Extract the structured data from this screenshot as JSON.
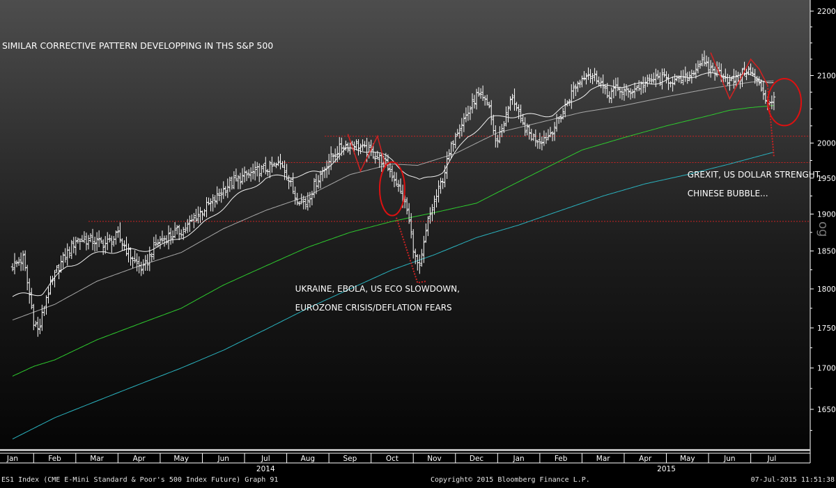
{
  "chart_data": {
    "type": "line",
    "title": "SIMILAR CORRECTIVE PATTERN DEVELOPPING IN THS S&P 500",
    "y_scale": "log",
    "ylim": [
      1600,
      2230
    ],
    "yticks": [
      1650,
      1700,
      1750,
      1800,
      1850,
      1900,
      1950,
      2000,
      2100,
      2200
    ],
    "y_axis_side": "right",
    "y_axis_label_fragment": "og",
    "x_month_labels": [
      "Jan",
      "Feb",
      "Mar",
      "Apr",
      "May",
      "Jun",
      "Jul",
      "Aug",
      "Sep",
      "Oct",
      "Nov",
      "Dec",
      "Jan",
      "Feb",
      "Mar",
      "Apr",
      "May",
      "Jun",
      "Jul"
    ],
    "x_year_labels": [
      {
        "label": "2014",
        "month_index": 6
      },
      {
        "label": "2015",
        "month_index": 15.5
      }
    ],
    "x_range_months": [
      0,
      18.9
    ],
    "price_bars": {
      "name": "ES1 Index",
      "color": "#ffffff",
      "knots": [
        [
          0,
          1830
        ],
        [
          0.25,
          1840
        ],
        [
          0.5,
          1760
        ],
        [
          0.62,
          1745
        ],
        [
          0.8,
          1790
        ],
        [
          1.1,
          1830
        ],
        [
          1.5,
          1865
        ],
        [
          1.8,
          1865
        ],
        [
          2.2,
          1860
        ],
        [
          2.5,
          1870
        ],
        [
          2.9,
          1835
        ],
        [
          3.1,
          1825
        ],
        [
          3.4,
          1860
        ],
        [
          3.7,
          1870
        ],
        [
          4.1,
          1880
        ],
        [
          4.4,
          1900
        ],
        [
          4.8,
          1920
        ],
        [
          5.1,
          1940
        ],
        [
          5.4,
          1950
        ],
        [
          5.8,
          1960
        ],
        [
          6.1,
          1965
        ],
        [
          6.4,
          1970
        ],
        [
          6.7,
          1925
        ],
        [
          6.95,
          1915
        ],
        [
          7.2,
          1945
        ],
        [
          7.5,
          1975
        ],
        [
          7.8,
          1995
        ],
        [
          8.1,
          2000
        ],
        [
          8.35,
          1990
        ],
        [
          8.55,
          1985
        ],
        [
          8.85,
          1970
        ],
        [
          9.1,
          1945
        ],
        [
          9.35,
          1905
        ],
        [
          9.55,
          1840
        ],
        [
          9.65,
          1825
        ],
        [
          9.85,
          1890
        ],
        [
          10.2,
          1950
        ],
        [
          10.5,
          2015
        ],
        [
          10.8,
          2045
        ],
        [
          11.0,
          2070
        ],
        [
          11.3,
          2055
        ],
        [
          11.45,
          2000
        ],
        [
          11.65,
          2030
        ],
        [
          11.85,
          2070
        ],
        [
          12.05,
          2030
        ],
        [
          12.3,
          2010
        ],
        [
          12.5,
          2005
        ],
        [
          12.7,
          2010
        ],
        [
          13.0,
          2040
        ],
        [
          13.3,
          2080
        ],
        [
          13.6,
          2105
        ],
        [
          13.9,
          2095
        ],
        [
          14.1,
          2070
        ],
        [
          14.3,
          2080
        ],
        [
          14.6,
          2075
        ],
        [
          14.9,
          2085
        ],
        [
          15.2,
          2095
        ],
        [
          15.5,
          2095
        ],
        [
          15.8,
          2090
        ],
        [
          16.05,
          2100
        ],
        [
          16.3,
          2120
        ],
        [
          16.55,
          2110
        ],
        [
          16.8,
          2105
        ],
        [
          17.0,
          2090
        ],
        [
          17.2,
          2095
        ],
        [
          17.4,
          2110
        ],
        [
          17.55,
          2100
        ],
        [
          17.75,
          2080
        ],
        [
          17.9,
          2060
        ],
        [
          18.05,
          2065
        ]
      ]
    },
    "series": [
      {
        "name": "ma-fast",
        "color": "#f2f2f2",
        "knots": [
          [
            0,
            1790
          ],
          [
            0.7,
            1795
          ],
          [
            1.3,
            1830
          ],
          [
            2.2,
            1850
          ],
          [
            3.0,
            1850
          ],
          [
            3.6,
            1858
          ],
          [
            4.4,
            1880
          ],
          [
            5.2,
            1920
          ],
          [
            6.0,
            1950
          ],
          [
            6.6,
            1953
          ],
          [
            7.3,
            1958
          ],
          [
            7.9,
            1990
          ],
          [
            8.5,
            1990
          ],
          [
            9.0,
            1975
          ],
          [
            9.4,
            1955
          ],
          [
            9.65,
            1945
          ],
          [
            10.2,
            1960
          ],
          [
            10.8,
            2010
          ],
          [
            11.3,
            2035
          ],
          [
            11.7,
            2040
          ],
          [
            12.3,
            2040
          ],
          [
            12.8,
            2042
          ],
          [
            13.3,
            2060
          ],
          [
            13.7,
            2080
          ],
          [
            14.3,
            2085
          ],
          [
            14.8,
            2085
          ],
          [
            15.5,
            2093
          ],
          [
            16.3,
            2102
          ],
          [
            16.8,
            2100
          ],
          [
            17.4,
            2100
          ],
          [
            18.05,
            2090
          ]
        ]
      },
      {
        "name": "ma-mid",
        "color": "#a8a8a8",
        "knots": [
          [
            0,
            1760
          ],
          [
            1.0,
            1780
          ],
          [
            2.0,
            1810
          ],
          [
            3.0,
            1830
          ],
          [
            4.0,
            1848
          ],
          [
            5.0,
            1880
          ],
          [
            6.0,
            1905
          ],
          [
            7.0,
            1925
          ],
          [
            8.0,
            1955
          ],
          [
            9.0,
            1970
          ],
          [
            9.6,
            1968
          ],
          [
            10.5,
            1985
          ],
          [
            11.5,
            2015
          ],
          [
            12.5,
            2030
          ],
          [
            13.5,
            2045
          ],
          [
            14.5,
            2055
          ],
          [
            15.5,
            2068
          ],
          [
            16.5,
            2080
          ],
          [
            17.5,
            2090
          ],
          [
            18.05,
            2092
          ]
        ]
      },
      {
        "name": "ma-green",
        "color": "#2ecc2e",
        "knots": [
          [
            0,
            1690
          ],
          [
            0.5,
            1702
          ],
          [
            1.0,
            1710
          ],
          [
            2.0,
            1735
          ],
          [
            3.0,
            1755
          ],
          [
            4.0,
            1775
          ],
          [
            5.0,
            1805
          ],
          [
            6.0,
            1830
          ],
          [
            7.0,
            1855
          ],
          [
            8.0,
            1875
          ],
          [
            9.0,
            1890
          ],
          [
            10.0,
            1902
          ],
          [
            11.0,
            1915
          ],
          [
            12.0,
            1945
          ],
          [
            12.5,
            1960
          ],
          [
            13.0,
            1975
          ],
          [
            13.5,
            1990
          ],
          [
            14.5,
            2008
          ],
          [
            15.5,
            2025
          ],
          [
            16.5,
            2040
          ],
          [
            17.0,
            2048
          ],
          [
            17.5,
            2052
          ],
          [
            18.05,
            2055
          ]
        ]
      },
      {
        "name": "ma-cyan",
        "color": "#2ab3bf",
        "knots": [
          [
            0,
            1615
          ],
          [
            1.0,
            1640
          ],
          [
            2.0,
            1660
          ],
          [
            3.0,
            1680
          ],
          [
            4.0,
            1700
          ],
          [
            5.0,
            1722
          ],
          [
            6.0,
            1748
          ],
          [
            7.0,
            1775
          ],
          [
            8.0,
            1800
          ],
          [
            9.0,
            1825
          ],
          [
            10.0,
            1845
          ],
          [
            11.0,
            1868
          ],
          [
            12.0,
            1885
          ],
          [
            13.0,
            1905
          ],
          [
            14.0,
            1925
          ],
          [
            15.0,
            1942
          ],
          [
            16.0,
            1955
          ],
          [
            17.0,
            1970
          ],
          [
            18.05,
            1987
          ]
        ]
      }
    ],
    "horizontal_levels": [
      {
        "value": 1890,
        "from": 1.8,
        "to": 18.9,
        "color": "#cc2222"
      },
      {
        "value": 2010,
        "from": 7.4,
        "to": 18.9,
        "color": "#cc2222"
      },
      {
        "value": 1972,
        "from": 6.4,
        "to": 18.9,
        "color": "#cc2222"
      }
    ],
    "pattern_lines": [
      {
        "color": "#cc2222",
        "dashed": false,
        "points": [
          [
            7.95,
            2013
          ],
          [
            8.25,
            1960
          ],
          [
            8.65,
            2010
          ],
          [
            8.85,
            1965
          ]
        ]
      },
      {
        "color": "#cc2222",
        "dashed": true,
        "points": [
          [
            9.1,
            1895
          ],
          [
            9.6,
            1808
          ],
          [
            9.8,
            1810
          ]
        ]
      },
      {
        "color": "#cc2222",
        "dashed": false,
        "points": [
          [
            16.55,
            2135
          ],
          [
            17.0,
            2065
          ],
          [
            17.3,
            2100
          ],
          [
            17.5,
            2125
          ],
          [
            17.7,
            2110
          ],
          [
            17.9,
            2085
          ]
        ]
      },
      {
        "color": "#cc2222",
        "dashed": true,
        "points": [
          [
            17.9,
            2085
          ],
          [
            18.05,
            1980
          ]
        ]
      }
    ],
    "circles": [
      {
        "center": [
          9.0,
          1935
        ],
        "rx_months": 0.3,
        "rx_px": 18,
        "ry_value_span": [
          1900,
          1975
        ],
        "color": "#dd1111"
      },
      {
        "center": [
          18.3,
          2060
        ],
        "rx_px": 24,
        "ry_value_span": [
          2030,
          2100
        ],
        "color": "#dd1111"
      }
    ],
    "annotations": [
      {
        "lines": [
          "UKRAINE, EBOLA, US ECO SLOWDOWN,",
          "EUROZONE CRISIS/DEFLATION FEARS"
        ],
        "anchor_month": 6.7,
        "anchor_value": 1800
      },
      {
        "lines": [
          "GREXIT, US DOLLAR STRENGHT,",
          "CHINESE BUBBLE..."
        ],
        "anchor_month": 16.0,
        "anchor_value": 1955
      }
    ]
  },
  "footer": {
    "left": "ES1 Index (CME E-Mini Standard & Poor's 500 Index Future) Graph 91",
    "center": "Copyright© 2015 Bloomberg Finance L.P.",
    "right": "07-Jul-2015 11:51:38"
  }
}
